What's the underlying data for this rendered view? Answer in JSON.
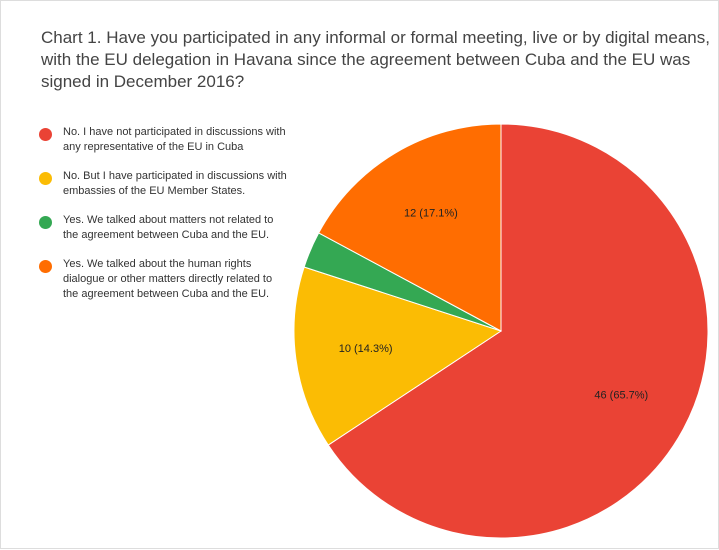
{
  "chart_data": {
    "type": "pie",
    "title": "Chart 1. Have you participated in any informal or formal meeting, live or by digital means, with the EU delegation in Havana since the agreement between Cuba and the EU was signed in December 2016?",
    "categories": [
      "No. I have not participated in discussions with any representative of the EU in Cuba",
      "No. But I have participated in discussions with embassies of the EU Member States.",
      "Yes. We talked about matters not related to the agreement between Cuba and the EU.",
      "Yes. We talked about the human rights dialogue or other matters directly related to the agreement between Cuba and the EU."
    ],
    "values": [
      46,
      10,
      2,
      12
    ],
    "value_labels": [
      "46 (65.7%)",
      "10 (14.3%)",
      null,
      "12 (17.1%)"
    ],
    "colors": [
      "#ea4335",
      "#fbbc04",
      "#34a853",
      "#ff6d01"
    ],
    "legend": "left"
  }
}
